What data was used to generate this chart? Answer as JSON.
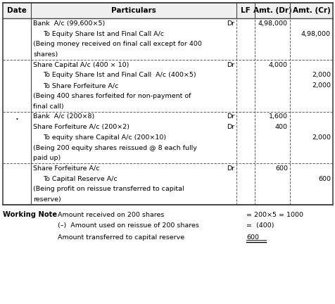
{
  "headers": [
    "Date",
    "Particulars",
    "LF",
    "Amt. (Dr)",
    "Amt. (Cr)"
  ],
  "rows": [
    {
      "section": 1,
      "date_dot": false,
      "lines": [
        {
          "indent": 0,
          "text": "Bank  A/c (99,600×5)",
          "dr_tag": "Dr",
          "amt_dr": "4,98,000",
          "amt_cr": ""
        },
        {
          "indent": 1,
          "text": "To Equity Share Ist and Final Call A/c",
          "dr_tag": "",
          "amt_dr": "",
          "amt_cr": "4,98,000"
        },
        {
          "indent": 0,
          "text": "(Being money received on final call except for 400",
          "dr_tag": "",
          "amt_dr": "",
          "amt_cr": ""
        },
        {
          "indent": 0,
          "text": "shares)",
          "dr_tag": "",
          "amt_dr": "",
          "amt_cr": ""
        }
      ]
    },
    {
      "section": 2,
      "date_dot": false,
      "lines": [
        {
          "indent": 0,
          "text": "Share Capital A/c (400 × 10)",
          "dr_tag": "Dr",
          "amt_dr": "4,000",
          "amt_cr": ""
        },
        {
          "indent": 1,
          "text": "To Equity Share Ist and Final Call  A/c (400×5)",
          "dr_tag": "",
          "amt_dr": "",
          "amt_cr": "2,000"
        },
        {
          "indent": 1,
          "text": "To Share Forfeiture A/c",
          "dr_tag": "",
          "amt_dr": "",
          "amt_cr": "2,000"
        },
        {
          "indent": 0,
          "text": "(Being 400 shares forfeited for non-payment of",
          "dr_tag": "",
          "amt_dr": "",
          "amt_cr": ""
        },
        {
          "indent": 0,
          "text": "final call)",
          "dr_tag": "",
          "amt_dr": "",
          "amt_cr": ""
        }
      ]
    },
    {
      "section": 3,
      "date_dot": true,
      "lines": [
        {
          "indent": 0,
          "text": "Bank  A/c (200×8)",
          "dr_tag": "Dr",
          "amt_dr": "1,600",
          "amt_cr": ""
        },
        {
          "indent": 0,
          "text": "Share Forfeiture A/c (200×2)",
          "dr_tag": "Dr",
          "amt_dr": "400",
          "amt_cr": ""
        },
        {
          "indent": 1,
          "text": "To equity share Capital A/c (200×10)",
          "dr_tag": "",
          "amt_dr": "",
          "amt_cr": "2,000"
        },
        {
          "indent": 0,
          "text": "(Being 200 equity shares reissued @ 8 each fully",
          "dr_tag": "",
          "amt_dr": "",
          "amt_cr": ""
        },
        {
          "indent": 0,
          "text": "paid up)",
          "dr_tag": "",
          "amt_dr": "",
          "amt_cr": ""
        }
      ]
    },
    {
      "section": 4,
      "date_dot": false,
      "lines": [
        {
          "indent": 0,
          "text": "Share Forfeiture A/c",
          "dr_tag": "Dr",
          "amt_dr": "600",
          "amt_cr": ""
        },
        {
          "indent": 1,
          "text": "To Capital Reserve A/c",
          "dr_tag": "",
          "amt_dr": "",
          "amt_cr": "600"
        },
        {
          "indent": 0,
          "text": "(Being profit on reissue transferred to capital",
          "dr_tag": "",
          "amt_dr": "",
          "amt_cr": ""
        },
        {
          "indent": 0,
          "text": "reserve)",
          "dr_tag": "",
          "amt_dr": "",
          "amt_cr": ""
        }
      ]
    }
  ],
  "working_note": {
    "label": "Working Note",
    "lines": [
      {
        "left": "Amount received on 200 shares",
        "right": "= 200×5 = 1000",
        "underline": false
      },
      {
        "left": "(–)  Amount used on reissue of 200 shares",
        "right": "=  (400)",
        "underline": false
      },
      {
        "left": "Amount transferred to capital reserve",
        "right": "600",
        "underline": true
      }
    ]
  },
  "bg_color": "#ffffff",
  "text_color": "#000000",
  "border_color": "#444444",
  "header_bg": "#f0f0f0",
  "font_size": 6.8,
  "header_font_size": 7.5
}
